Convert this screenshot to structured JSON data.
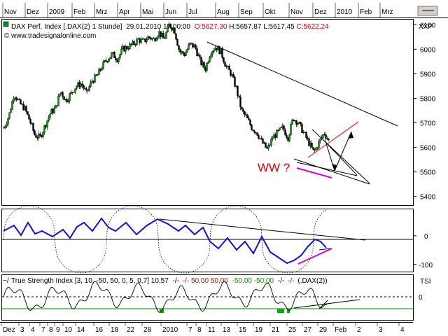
{
  "top_axis": {
    "labels": [
      "Nov",
      "Dez",
      "2009",
      "Feb",
      "Mrz",
      "Apr",
      "Mai",
      "Jun",
      "Jul",
      "Aug",
      "Sep",
      "Okt",
      "Nov",
      "Dez",
      "2010",
      "Feb",
      "Mrz"
    ]
  },
  "header": {
    "title": "DAX Perf. Index [.DAX(2)  1 Stunde]",
    "datetime": "29.01.2010 17:00:00",
    "open": "O:5627,30",
    "high": "H:5657,87",
    "low": "L:5617,45",
    "close": "C:5622,24",
    "watermark": "© www.tradesignalonline.com",
    "axis_name": "XXP"
  },
  "annotation": {
    "text": "WW ?"
  },
  "tsi_panel": {
    "label_prefix": "True Strength Index [3, 10, -50, 50, 0, 5, 0,7] 10,57",
    "sep1": "-/-",
    "red_vals": "-/-  50,00 50,00",
    "green_vals": "-50,00 -50,00",
    "sep2": "-/-",
    "sep3": "-/-",
    "suffix": "(.DAX(2))",
    "axis_name": "TSI"
  },
  "bottom_axis": {
    "labels": [
      "Dez",
      "3",
      "4",
      "7",
      "8",
      "9",
      "10",
      "14",
      "16",
      "18",
      "22",
      "28",
      "2010",
      "7",
      "8",
      "11",
      "13",
      "15",
      "19",
      "21",
      "25",
      "27",
      "29",
      "Feb",
      "2",
      "3",
      "4"
    ]
  },
  "chart_data": {
    "type": "line",
    "title": "DAX Perf. Index [.DAX(2) 1 Stunde]",
    "price_axis": {
      "ticks": [
        6100,
        6000,
        5900,
        5800,
        5700,
        5600,
        5500,
        5400
      ],
      "ylim": [
        5365,
        6115
      ]
    },
    "price_path_approx": [
      5680,
      5730,
      5820,
      5780,
      5760,
      5710,
      5650,
      5640,
      5690,
      5740,
      5760,
      5830,
      5790,
      5820,
      5850,
      5860,
      5820,
      5870,
      5890,
      5930,
      5960,
      5980,
      5960,
      6000,
      6010,
      6020,
      6040,
      6030,
      6050,
      6040,
      6070,
      6040,
      6100,
      6080,
      5990,
      5980,
      6020,
      6010,
      5950,
      5920,
      5990,
      6010,
      5990,
      5930,
      5900,
      5840,
      5750,
      5720,
      5680,
      5660,
      5620,
      5590,
      5640,
      5660,
      5680,
      5640,
      5720,
      5700,
      5660,
      5620,
      5580,
      5620,
      5660,
      5622
    ],
    "osc_axis": {
      "ticks": [
        0,
        -100
      ],
      "ylim": [
        -125,
        90
      ]
    },
    "tsi_axis": {
      "ticks": [
        0
      ],
      "ylim": [
        -55,
        50
      ]
    }
  }
}
